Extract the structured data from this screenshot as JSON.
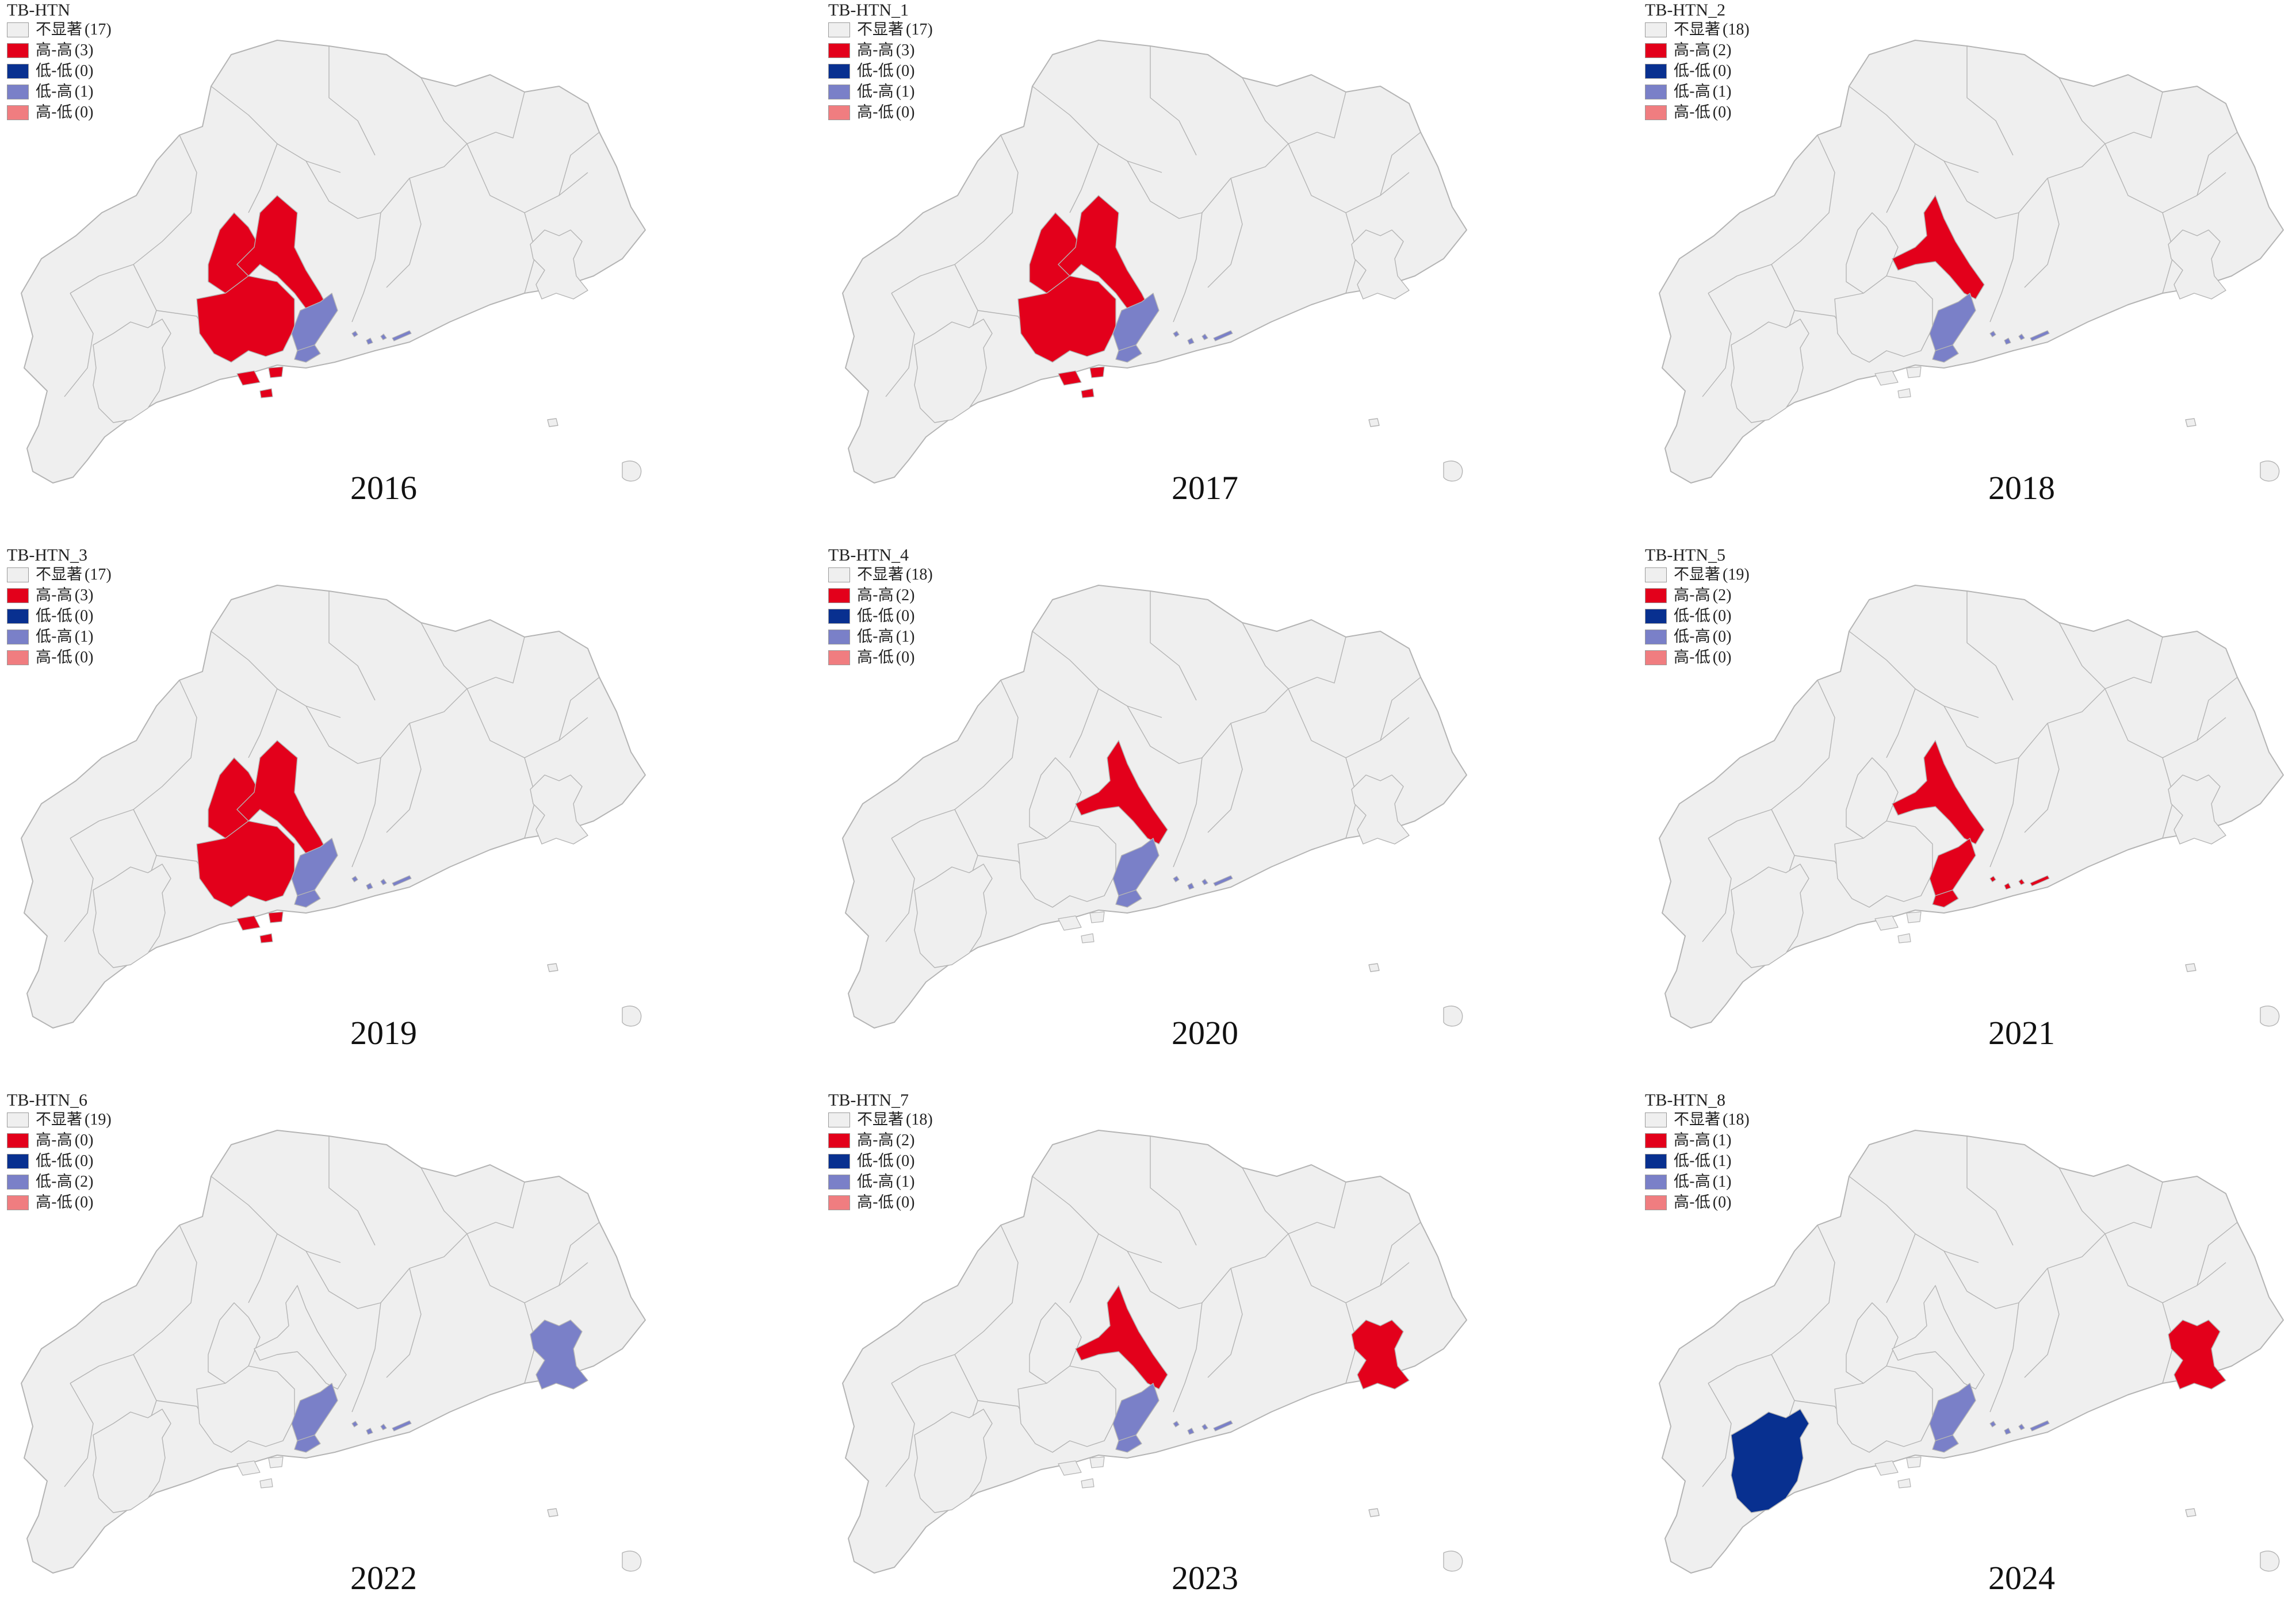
{
  "colors": {
    "not_significant": "#efefef",
    "high_high": "#e3001b",
    "low_low": "#083090",
    "low_high": "#7a80c8",
    "high_low": "#f07d80",
    "border": "#b4b4b4"
  },
  "panels": [
    {
      "title": "TB-HTN",
      "year": "2016",
      "legend": [
        {
          "label": "不显著",
          "count": "(17)"
        },
        {
          "label": "高-高",
          "count": "(3)"
        },
        {
          "label": "低-低",
          "count": "(0)"
        },
        {
          "label": "低-高",
          "count": "(1)"
        },
        {
          "label": "高-低",
          "count": "(0)"
        }
      ],
      "regions": {
        "zhaoqing": "high_high",
        "foshan": "high_high",
        "jiangmen": "high_high",
        "zhongshan": "low_high",
        "zhuhai": "low_high",
        "islands": "low_high",
        "shantou": "not_significant",
        "maoming": "not_significant"
      }
    },
    {
      "title": "TB-HTN_1",
      "year": "2017",
      "legend": [
        {
          "label": "不显著",
          "count": "(17)"
        },
        {
          "label": "高-高",
          "count": "(3)"
        },
        {
          "label": "低-低",
          "count": "(0)"
        },
        {
          "label": "低-高",
          "count": "(1)"
        },
        {
          "label": "高-低",
          "count": "(0)"
        }
      ],
      "regions": {
        "zhaoqing": "high_high",
        "foshan": "high_high",
        "jiangmen": "high_high",
        "zhongshan": "low_high",
        "zhuhai": "low_high",
        "islands": "low_high",
        "shantou": "not_significant",
        "maoming": "not_significant"
      }
    },
    {
      "title": "TB-HTN_2",
      "year": "2018",
      "legend": [
        {
          "label": "不显著",
          "count": "(18)"
        },
        {
          "label": "高-高",
          "count": "(2)"
        },
        {
          "label": "低-低",
          "count": "(0)"
        },
        {
          "label": "低-高",
          "count": "(1)"
        },
        {
          "label": "高-低",
          "count": "(0)"
        }
      ],
      "regions": {
        "zhaoqing": "not_significant",
        "foshan": "high_high",
        "jiangmen": "not_significant",
        "zhongshan": "low_high",
        "zhuhai": "low_high",
        "islands": "low_high",
        "shantou": "not_significant",
        "maoming": "not_significant"
      }
    },
    {
      "title": "TB-HTN_3",
      "year": "2019",
      "legend": [
        {
          "label": "不显著",
          "count": "(17)"
        },
        {
          "label": "高-高",
          "count": "(3)"
        },
        {
          "label": "低-低",
          "count": "(0)"
        },
        {
          "label": "低-高",
          "count": "(1)"
        },
        {
          "label": "高-低",
          "count": "(0)"
        }
      ],
      "regions": {
        "zhaoqing": "high_high",
        "foshan": "high_high",
        "jiangmen": "high_high",
        "zhongshan": "low_high",
        "zhuhai": "low_high",
        "islands": "low_high",
        "shantou": "not_significant",
        "maoming": "not_significant"
      }
    },
    {
      "title": "TB-HTN_4",
      "year": "2020",
      "legend": [
        {
          "label": "不显著",
          "count": "(18)"
        },
        {
          "label": "高-高",
          "count": "(2)"
        },
        {
          "label": "低-低",
          "count": "(0)"
        },
        {
          "label": "低-高",
          "count": "(1)"
        },
        {
          "label": "高-低",
          "count": "(0)"
        }
      ],
      "regions": {
        "zhaoqing": "not_significant",
        "foshan": "high_high",
        "jiangmen": "not_significant",
        "zhongshan": "low_high",
        "zhuhai": "low_high",
        "islands": "low_high",
        "shantou": "not_significant",
        "maoming": "not_significant"
      }
    },
    {
      "title": "TB-HTN_5",
      "year": "2021",
      "legend": [
        {
          "label": "不显著",
          "count": "(19)"
        },
        {
          "label": "高-高",
          "count": "(2)"
        },
        {
          "label": "低-低",
          "count": "(0)"
        },
        {
          "label": "低-高",
          "count": "(0)"
        },
        {
          "label": "高-低",
          "count": "(0)"
        }
      ],
      "regions": {
        "zhaoqing": "not_significant",
        "foshan": "high_high",
        "jiangmen": "not_significant",
        "zhongshan": "high_high",
        "zhuhai": "high_high",
        "islands": "high_high",
        "shantou": "not_significant",
        "maoming": "not_significant"
      }
    },
    {
      "title": "TB-HTN_6",
      "year": "2022",
      "legend": [
        {
          "label": "不显著",
          "count": "(19)"
        },
        {
          "label": "高-高",
          "count": "(0)"
        },
        {
          "label": "低-低",
          "count": "(0)"
        },
        {
          "label": "低-高",
          "count": "(2)"
        },
        {
          "label": "高-低",
          "count": "(0)"
        }
      ],
      "regions": {
        "zhaoqing": "not_significant",
        "foshan": "not_significant",
        "jiangmen": "not_significant",
        "zhongshan": "low_high",
        "zhuhai": "low_high",
        "islands": "low_high",
        "shantou": "low_high",
        "maoming": "not_significant"
      }
    },
    {
      "title": "TB-HTN_7",
      "year": "2023",
      "legend": [
        {
          "label": "不显著",
          "count": "(18)"
        },
        {
          "label": "高-高",
          "count": "(2)"
        },
        {
          "label": "低-低",
          "count": "(0)"
        },
        {
          "label": "低-高",
          "count": "(1)"
        },
        {
          "label": "高-低",
          "count": "(0)"
        }
      ],
      "regions": {
        "zhaoqing": "not_significant",
        "foshan": "high_high",
        "jiangmen": "not_significant",
        "zhongshan": "low_high",
        "zhuhai": "low_high",
        "islands": "low_high",
        "shantou": "high_high",
        "maoming": "not_significant"
      }
    },
    {
      "title": "TB-HTN_8",
      "year": "2024",
      "legend": [
        {
          "label": "不显著",
          "count": "(18)"
        },
        {
          "label": "高-高",
          "count": "(1)"
        },
        {
          "label": "低-低",
          "count": "(1)"
        },
        {
          "label": "低-高",
          "count": "(1)"
        },
        {
          "label": "高-低",
          "count": "(0)"
        }
      ],
      "regions": {
        "zhaoqing": "not_significant",
        "foshan": "not_significant",
        "jiangmen": "not_significant",
        "zhongshan": "low_high",
        "zhuhai": "low_high",
        "islands": "low_high",
        "shantou": "high_high",
        "maoming": "low_low"
      }
    }
  ],
  "legend_color_keys": [
    "not_significant",
    "high_high",
    "low_low",
    "low_high",
    "high_low"
  ]
}
